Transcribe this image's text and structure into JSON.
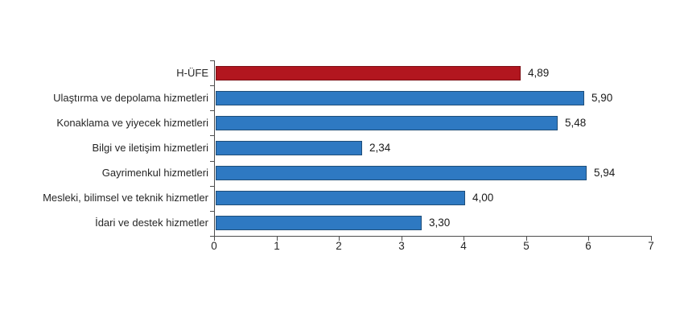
{
  "chart_data": {
    "type": "bar",
    "orientation": "horizontal",
    "title": "",
    "xlabel": "",
    "ylabel": "",
    "grid": false,
    "legend": "none",
    "xlim": [
      0,
      7
    ],
    "x_ticks": [
      "0",
      "1",
      "2",
      "3",
      "4",
      "5",
      "6",
      "7"
    ],
    "categories": [
      "H-ÜFE",
      "Ulaştırma ve depolama hizmetleri",
      "Konaklama ve yiyecek hizmetleri",
      "Bilgi ve iletişim hizmetleri",
      "Gayrimenkul hizmetleri",
      "Mesleki, bilimsel ve teknik hizmetler",
      "İdari ve destek hizmetler"
    ],
    "values": [
      4.89,
      5.9,
      5.48,
      2.34,
      5.94,
      4.0,
      3.3
    ],
    "value_labels": [
      "4,89",
      "5,90",
      "5,48",
      "2,34",
      "5,94",
      "4,00",
      "3,30"
    ],
    "bar_fill_colors": [
      "#b2161f",
      "#2e79c2",
      "#2e79c2",
      "#2e79c2",
      "#2e79c2",
      "#2e79c2",
      "#2e79c2"
    ],
    "bar_border_colors": [
      "#7d1016",
      "#1f4e79",
      "#1f4e79",
      "#1f4e79",
      "#1f4e79",
      "#1f4e79",
      "#1f4e79"
    ],
    "highlight_color": "#b2161f",
    "series_color": "#2e79c2",
    "axis_color": "#4d4d4d",
    "text_color": "#262626",
    "background_color": "#ffffff"
  }
}
